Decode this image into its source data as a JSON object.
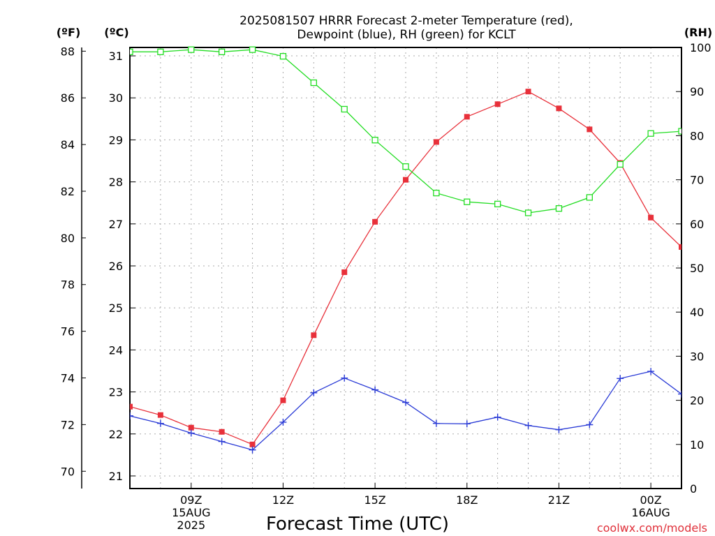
{
  "chart_data": {
    "type": "line",
    "title_line1": "2025081507 HRRR Forecast 2-meter Temperature (red),",
    "title_line2": "Dewpoint (blue), RH (green) for KCLT",
    "xlabel": "Forecast Time (UTC)",
    "credit": "coolwx.com/models",
    "units": {
      "f": "(ºF)",
      "c": "(ºC)",
      "rh": "(RH)"
    },
    "x_hours": [
      7,
      8,
      9,
      10,
      11,
      12,
      13,
      14,
      15,
      16,
      17,
      18,
      19,
      20,
      21,
      22,
      23,
      24,
      25
    ],
    "x_ticks": [
      {
        "hour": 9,
        "lines": [
          "09Z",
          "15AUG",
          "2025"
        ]
      },
      {
        "hour": 12,
        "lines": [
          "12Z"
        ]
      },
      {
        "hour": 15,
        "lines": [
          "15Z"
        ]
      },
      {
        "hour": 18,
        "lines": [
          "18Z"
        ]
      },
      {
        "hour": 21,
        "lines": [
          "21Z"
        ]
      },
      {
        "hour": 24,
        "lines": [
          "00Z",
          "16AUG"
        ]
      }
    ],
    "c_axis": {
      "min": 20.7,
      "max": 31.2,
      "ticks": [
        21,
        22,
        23,
        24,
        25,
        26,
        27,
        28,
        29,
        30,
        31
      ]
    },
    "f_ticks": [
      70,
      72,
      74,
      76,
      78,
      80,
      82,
      84,
      86,
      88
    ],
    "rh_axis": {
      "min": 0,
      "max": 100,
      "ticks": [
        0,
        10,
        20,
        30,
        40,
        50,
        60,
        70,
        80,
        90,
        100
      ]
    },
    "series": [
      {
        "name": "Temperature",
        "color": "#e8303a",
        "marker": "filled-square",
        "axis": "c",
        "values": [
          22.65,
          22.45,
          22.15,
          22.05,
          21.75,
          22.8,
          24.35,
          25.85,
          27.05,
          28.05,
          28.95,
          29.55,
          29.85,
          30.15,
          29.75,
          29.25,
          28.45,
          27.15,
          26.45
        ]
      },
      {
        "name": "Dewpoint",
        "color": "#2a3bd6",
        "marker": "plus",
        "axis": "c",
        "values": [
          22.43,
          22.25,
          22.02,
          21.82,
          21.62,
          22.28,
          22.98,
          23.33,
          23.05,
          22.75,
          22.25,
          22.24,
          22.4,
          22.2,
          22.1,
          22.22,
          23.32,
          23.49,
          22.95
        ]
      },
      {
        "name": "RH",
        "color": "#22dd22",
        "marker": "open-square",
        "axis": "rh",
        "values": [
          99,
          99,
          99.5,
          99,
          99.5,
          98,
          92,
          86,
          79,
          73,
          67,
          65,
          64.5,
          62.5,
          63.5,
          66,
          73.5,
          80.5,
          81
        ]
      }
    ]
  }
}
